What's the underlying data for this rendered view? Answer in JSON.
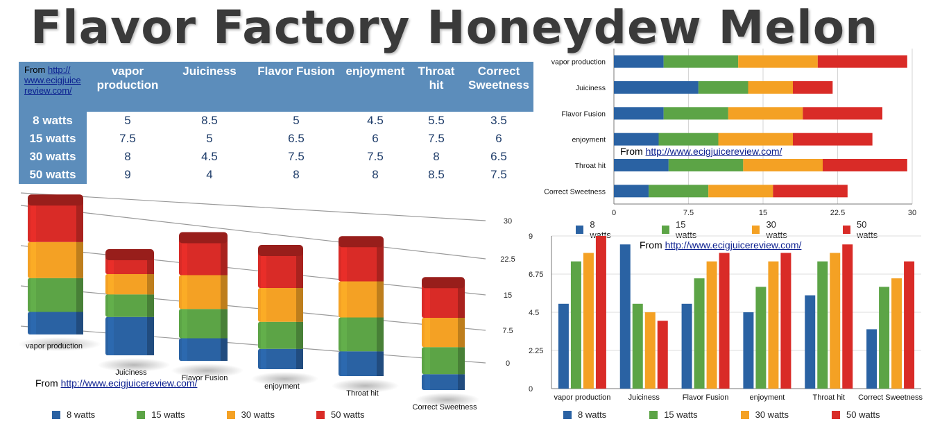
{
  "title": "Flavor Factory Honeydew Melon",
  "source": {
    "prefix": "From",
    "url": "http://www.ecigjuicereview.com/",
    "url_wrapped": [
      "http://",
      "www.ecigjuice",
      "review.com/"
    ]
  },
  "table": {
    "columns": [
      "vapor production",
      "Juiciness",
      "Flavor Fusion",
      "enjoyment",
      "Throat hit",
      "Correct Sweetness"
    ],
    "columns_wrapped": [
      [
        "vapor",
        "production"
      ],
      [
        "Juiciness"
      ],
      [
        "Flavor Fusion"
      ],
      [
        "enjoyment"
      ],
      [
        "Throat",
        "hit"
      ],
      [
        "Correct",
        "Sweetness"
      ]
    ],
    "rows": [
      {
        "label": "8 watts",
        "cells": [
          "5",
          "8.5",
          "5",
          "4.5",
          "5.5",
          "3.5"
        ]
      },
      {
        "label": "15 watts",
        "cells": [
          "7.5",
          "5",
          "6.5",
          "6",
          "7.5",
          "6"
        ]
      },
      {
        "label": "30 watts",
        "cells": [
          "8",
          "4.5",
          "7.5",
          "7.5",
          "8",
          "6.5"
        ]
      },
      {
        "label": "50 watts",
        "cells": [
          "9",
          "4",
          "8",
          "8",
          "8.5",
          "7.5"
        ]
      }
    ]
  },
  "colors": {
    "s8": "#2a62a3",
    "s15": "#5ca446",
    "s30": "#f4a124",
    "s50": "#d92b27",
    "table_header": "#5c8dbb"
  },
  "chart_data": [
    {
      "type": "bar",
      "orientation": "vertical-stacked-3d",
      "categories": [
        "vapor production",
        "Juiciness",
        "Flavor Fusion",
        "enjoyment",
        "Throat hit",
        "Correct Sweetness"
      ],
      "series": [
        {
          "name": "8 watts",
          "values": [
            5,
            8.5,
            5,
            4.5,
            5.5,
            3.5
          ]
        },
        {
          "name": "15 watts",
          "values": [
            7.5,
            5,
            6.5,
            6,
            7.5,
            6
          ]
        },
        {
          "name": "30 watts",
          "values": [
            8,
            4.5,
            7.5,
            7.5,
            8,
            6.5
          ]
        },
        {
          "name": "50 watts",
          "values": [
            9,
            4,
            8,
            8,
            8.5,
            7.5
          ]
        }
      ],
      "y_ticks": [
        "0",
        "7.5",
        "15",
        "22.5",
        "30"
      ],
      "ylim": [
        0,
        30
      ],
      "legend": "bottom"
    },
    {
      "type": "bar",
      "orientation": "horizontal-stacked",
      "categories": [
        "vapor production",
        "Juiciness",
        "Flavor Fusion",
        "enjoyment",
        "Throat hit",
        "Correct Sweetness"
      ],
      "series": [
        {
          "name": "8 watts",
          "values": [
            5,
            8.5,
            5,
            4.5,
            5.5,
            3.5
          ]
        },
        {
          "name": "15 watts",
          "values": [
            7.5,
            5,
            6.5,
            6,
            7.5,
            6
          ]
        },
        {
          "name": "30 watts",
          "values": [
            8,
            4.5,
            7.5,
            7.5,
            8,
            6.5
          ]
        },
        {
          "name": "50 watts",
          "values": [
            9,
            4,
            8,
            8,
            8.5,
            7.5
          ]
        }
      ],
      "x_ticks": [
        "0",
        "7.5",
        "15",
        "22.5",
        "30"
      ],
      "xlim": [
        0,
        30
      ],
      "legend": "bottom"
    },
    {
      "type": "bar",
      "orientation": "vertical-grouped",
      "categories": [
        "vapor production",
        "Juiciness",
        "Flavor Fusion",
        "enjoyment",
        "Throat hit",
        "Correct Sweetness"
      ],
      "series": [
        {
          "name": "8 watts",
          "values": [
            5,
            8.5,
            5,
            4.5,
            5.5,
            3.5
          ]
        },
        {
          "name": "15 watts",
          "values": [
            7.5,
            5,
            6.5,
            6,
            7.5,
            6
          ]
        },
        {
          "name": "30 watts",
          "values": [
            8,
            4.5,
            7.5,
            7.5,
            8,
            6.5
          ]
        },
        {
          "name": "50 watts",
          "values": [
            9,
            4,
            8,
            8,
            8.5,
            7.5
          ]
        }
      ],
      "y_ticks": [
        "0",
        "2.25",
        "4.5",
        "6.75",
        "9"
      ],
      "ylim": [
        0,
        9
      ],
      "legend": "bottom"
    }
  ]
}
